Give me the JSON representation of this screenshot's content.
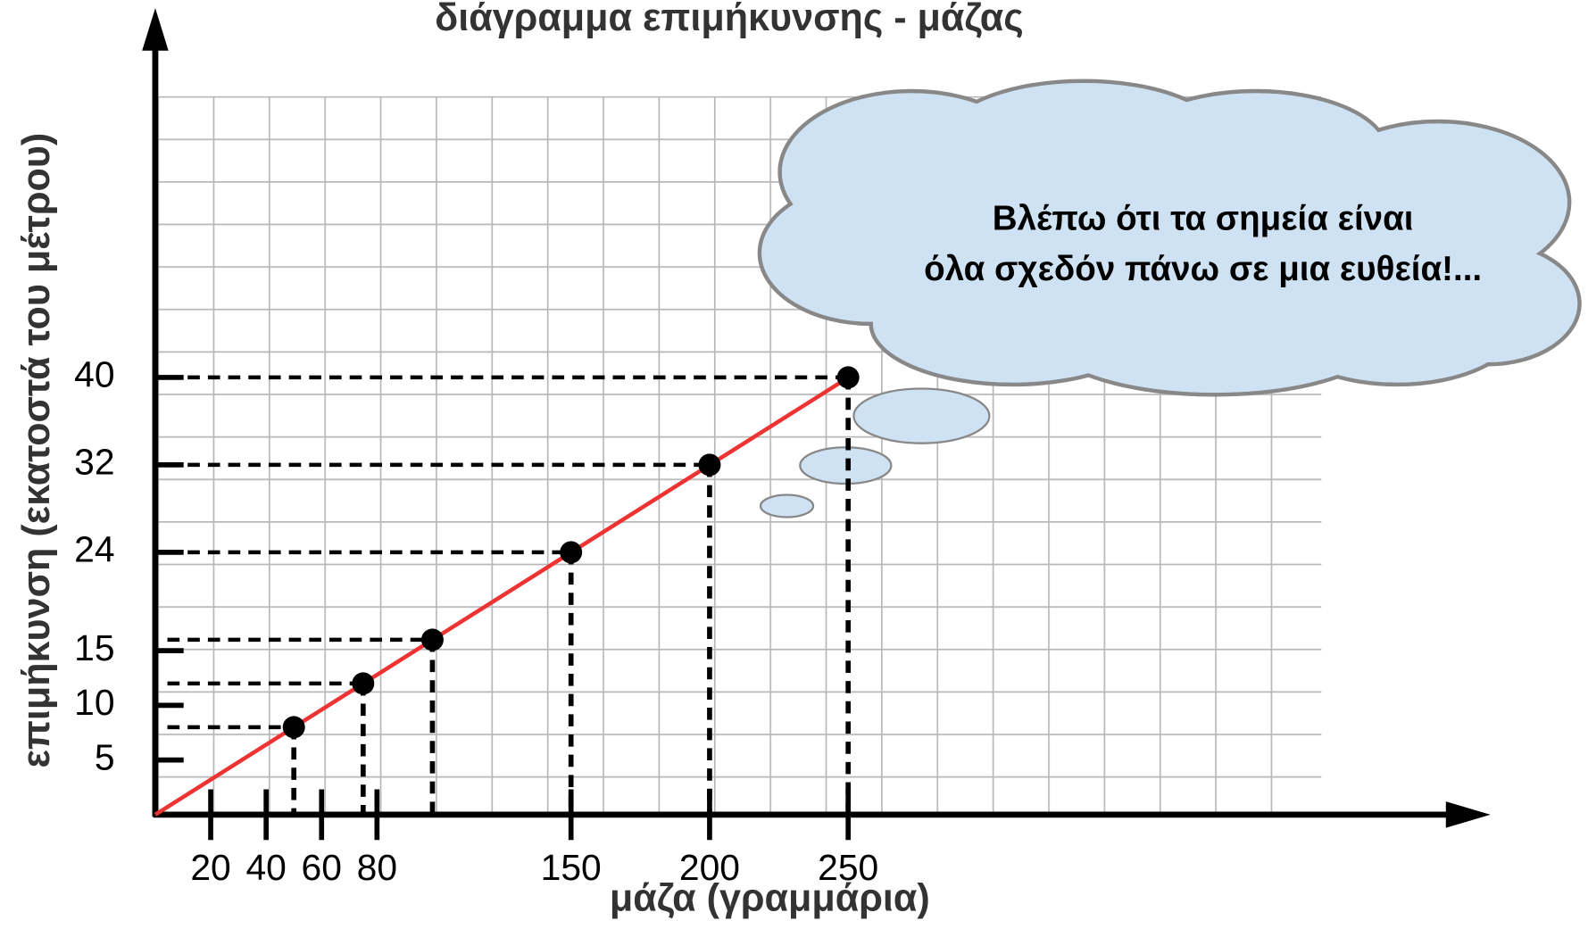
{
  "chart_data": {
    "type": "scatter",
    "title": "διάγραμμα επιμήκυνσης - μάζας",
    "x_label": "μάζα (γραμμάρια)",
    "y_label": "επιμήκυνση (εκατοστά του μέτρου)",
    "x": [
      50,
      75,
      100,
      150,
      200,
      250
    ],
    "values": [
      8,
      12,
      16,
      24,
      32,
      40
    ],
    "color": "#000000",
    "xlim": [
      0,
      481
    ],
    "ylim": [
      0,
      73.6
    ],
    "xticks": [
      20,
      40,
      60,
      80,
      150,
      200,
      250
    ],
    "yticks": [
      5,
      10,
      15,
      24,
      32,
      40
    ],
    "fit_line": {
      "x": [
        0,
        252
      ],
      "values": [
        0,
        40.3
      ],
      "color": "#ee3333"
    },
    "annotation": [
      "Βλέπω ότι τα σημεία είναι",
      "όλα σχεδόν πάνω σε μια ευθεία!..."
    ]
  }
}
